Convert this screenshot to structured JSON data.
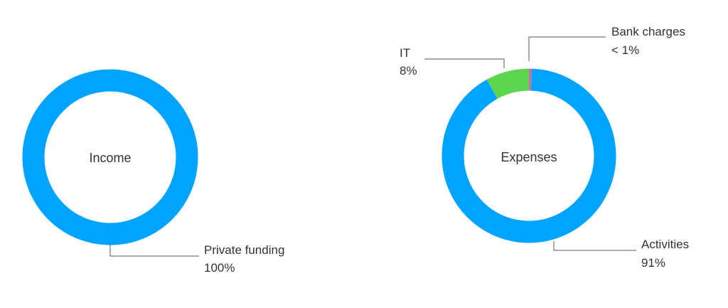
{
  "chart_data": [
    {
      "type": "pie",
      "title": "Income",
      "slices": [
        {
          "label": "Private funding",
          "value": 100,
          "value_label": "100%",
          "color": "#00a3ff"
        }
      ]
    },
    {
      "type": "pie",
      "title": "Expenses",
      "slices": [
        {
          "label": "Bank charges",
          "value": 0.5,
          "value_label": "< 1%",
          "color": "#d16aa8"
        },
        {
          "label": "Activities",
          "value": 91,
          "value_label": "91%",
          "color": "#00a3ff"
        },
        {
          "label": "IT",
          "value": 8,
          "value_label": "8%",
          "color": "#5cd64e"
        }
      ]
    }
  ]
}
